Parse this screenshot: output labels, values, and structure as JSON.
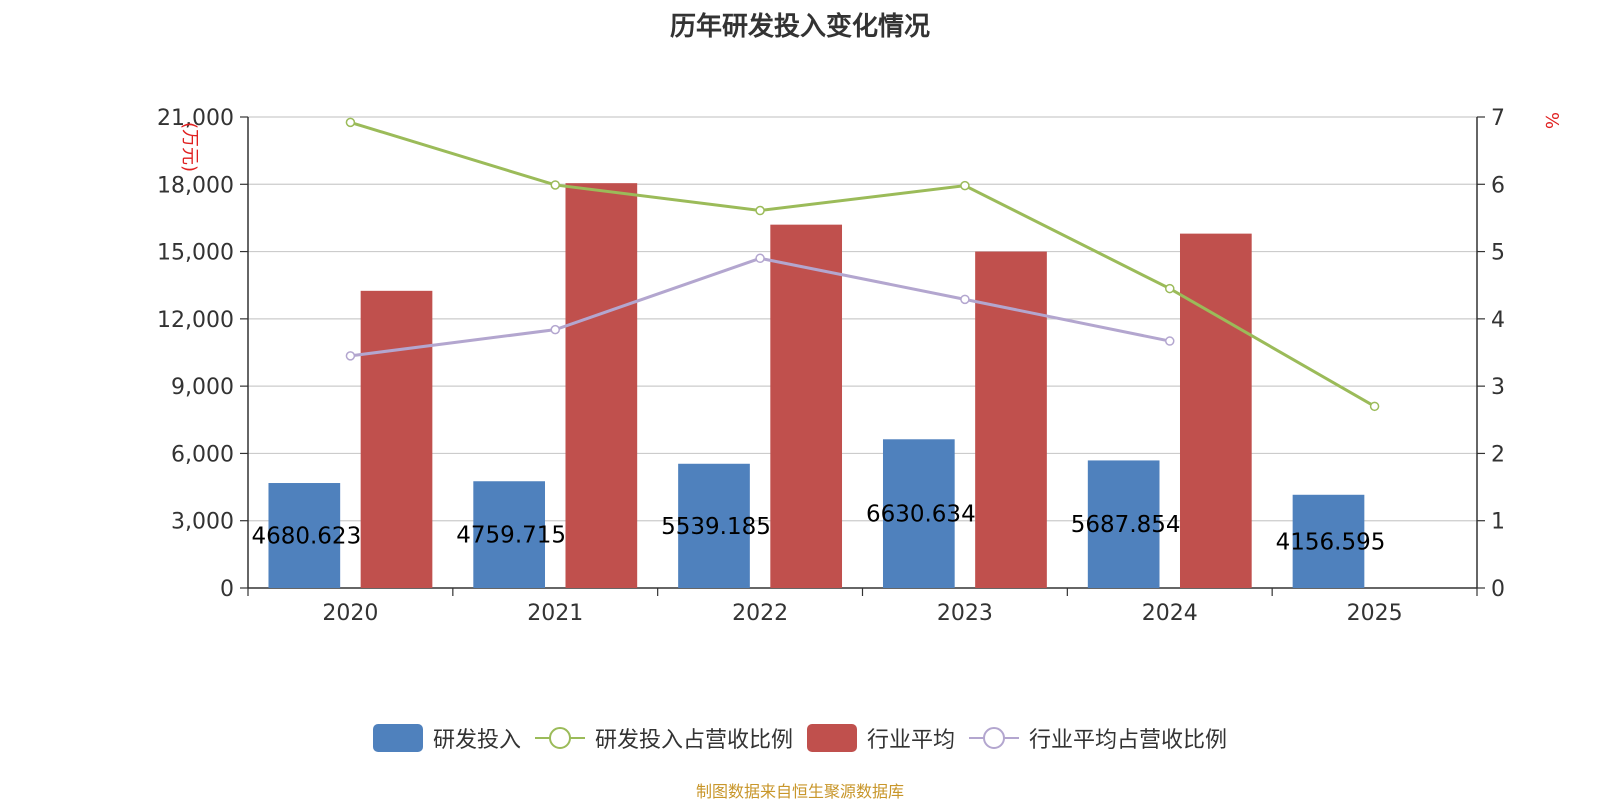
{
  "title": "历年研发投入变化情况",
  "source_note": "制图数据来自恒生聚源数据库",
  "colors": {
    "rd_bar": "#4f81bd",
    "industry_bar": "#c0504d",
    "rd_ratio_line": "#9bbb59",
    "industry_ratio_line": "#b3a6cf",
    "axis_unit_red": "#e02020"
  },
  "chart_data": {
    "type": "bar",
    "categories": [
      "2020",
      "2021",
      "2022",
      "2023",
      "2024",
      "2025"
    ],
    "left_axis": {
      "label": "万元",
      "ylim": [
        0,
        21000
      ],
      "ticks": [
        "0",
        "3,000",
        "6,000",
        "9,000",
        "12,000",
        "15,000",
        "18,000",
        "21,000"
      ]
    },
    "right_axis": {
      "label": "%",
      "ylim": [
        0,
        7
      ],
      "ticks": [
        "0",
        "1",
        "2",
        "3",
        "4",
        "5",
        "6",
        "7"
      ]
    },
    "series": [
      {
        "name": "研发投入",
        "type": "bar",
        "axis": "left",
        "values": [
          4680.623,
          4759.715,
          5539.185,
          6630.634,
          5687.854,
          4156.595
        ],
        "labels": [
          "4680.623",
          "4759.715",
          "5539.185",
          "6630.634",
          "5687.854",
          "4156.595"
        ]
      },
      {
        "name": "研发投入占营收比例",
        "type": "line",
        "axis": "right",
        "values": [
          6.92,
          5.99,
          5.61,
          5.98,
          4.45,
          2.7
        ]
      },
      {
        "name": "行业平均",
        "type": "bar",
        "axis": "left",
        "values": [
          13250,
          18050,
          16200,
          15000,
          15800,
          null
        ]
      },
      {
        "name": "行业平均占营收比例",
        "type": "line",
        "axis": "right",
        "values": [
          3.45,
          3.84,
          4.9,
          4.29,
          3.67,
          null
        ]
      }
    ],
    "grid": true,
    "legend_position": "bottom"
  }
}
